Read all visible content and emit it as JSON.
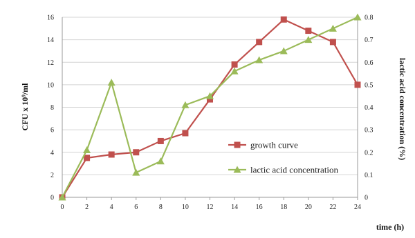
{
  "chart_data": {
    "type": "line",
    "x": [
      0,
      2,
      4,
      6,
      8,
      10,
      12,
      14,
      16,
      18,
      20,
      22,
      24
    ],
    "xlabel": "time (h)",
    "ylabel_left": "CFU x 10⁹/ml",
    "ylabel_right": "lactic acid concentration (%)",
    "ylim_left": [
      0,
      16
    ],
    "ylim_right": [
      0,
      0.8
    ],
    "yticks_left": [
      "0",
      "2",
      "4",
      "6",
      "8",
      "10",
      "12",
      "14",
      "16"
    ],
    "yticks_right": [
      "0",
      "0.1",
      "0.2",
      "0.3",
      "0.4",
      "0.5",
      "0.6",
      "0.7",
      "0.8"
    ],
    "xticks": [
      "0",
      "2",
      "4",
      "6",
      "8",
      "10",
      "12",
      "14",
      "16",
      "18",
      "20",
      "22",
      "24"
    ],
    "grid": true,
    "legend_position": "center-right",
    "series": [
      {
        "name": "growth curve",
        "axis": "left",
        "color": "#c0504d",
        "marker": "square",
        "values": [
          0,
          3.5,
          3.8,
          4.0,
          5.0,
          5.7,
          8.7,
          11.8,
          13.8,
          15.8,
          14.8,
          13.8,
          10.0
        ]
      },
      {
        "name": "lactic acid concentration",
        "axis": "right",
        "color": "#9bbb59",
        "marker": "triangle",
        "values": [
          0,
          0.21,
          0.51,
          0.11,
          0.16,
          0.41,
          0.45,
          0.56,
          0.61,
          0.65,
          0.7,
          0.75,
          0.8
        ]
      }
    ]
  }
}
